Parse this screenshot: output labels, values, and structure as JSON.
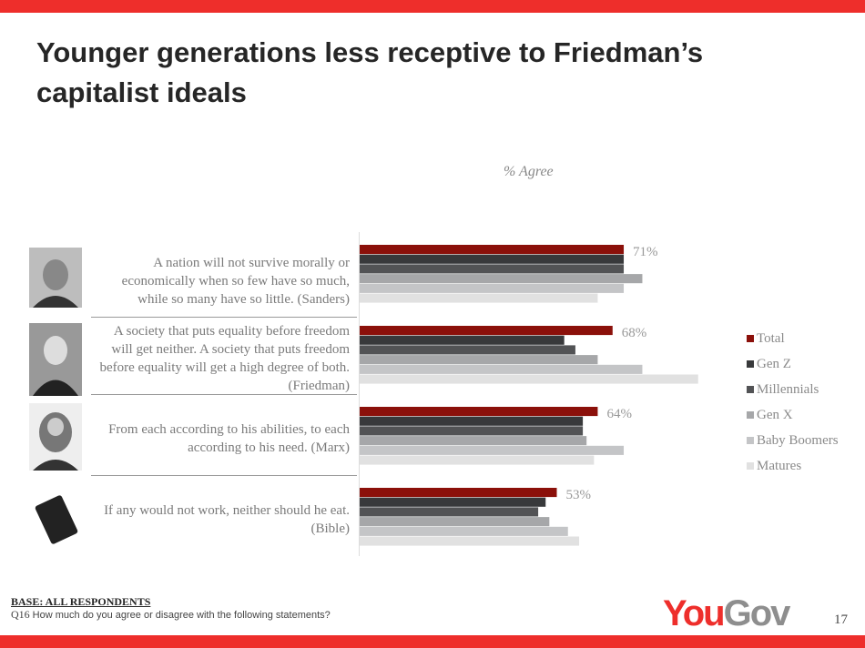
{
  "title": "Younger generations less receptive to Friedman’s capitalist ideals",
  "chart_data": {
    "type": "bar",
    "orientation": "horizontal",
    "subtitle": "% Agree",
    "categories": [
      "A nation will not survive morally or economically when so few have so much, while so many have so little. (Sanders)",
      "A society that puts equality before freedom will get neither. A society that puts freedom before equality will get a high degree of both. (Friedman)",
      "From each according to his abilities, to each according to his need. (Marx)",
      "If any would not work, neither should he eat. (Bible)"
    ],
    "series": [
      {
        "name": "Total",
        "color": "#8b100a",
        "values": [
          71,
          68,
          64,
          53
        ],
        "labels": [
          "71%",
          "68%",
          "64%",
          "53%"
        ]
      },
      {
        "name": "Gen Z",
        "color": "#38393b",
        "values": [
          71,
          55,
          60,
          50
        ]
      },
      {
        "name": "Millennials",
        "color": "#525355",
        "values": [
          71,
          58,
          60,
          48
        ]
      },
      {
        "name": "Gen X",
        "color": "#a6a7a9",
        "values": [
          76,
          64,
          61,
          51
        ]
      },
      {
        "name": "Baby Boomers",
        "color": "#c4c5c7",
        "values": [
          71,
          76,
          71,
          56
        ]
      },
      {
        "name": "Matures",
        "color": "#e1e1e1",
        "values": [
          64,
          91,
          63,
          59
        ]
      }
    ],
    "legend_position": "right",
    "grid": false
  },
  "photos": [
    "Sanders",
    "Friedman",
    "Marx",
    "Bible"
  ],
  "footer": {
    "base": "BASE: ALL RESPONDENTS",
    "q_num": "Q16",
    "question": "How much do you agree or disagree with the following statements?",
    "logo_you": "You",
    "logo_gov": "Gov",
    "page": "17"
  },
  "colors": {
    "accent": "#ee2e2b",
    "logo_gray": "#8e8e8e"
  }
}
